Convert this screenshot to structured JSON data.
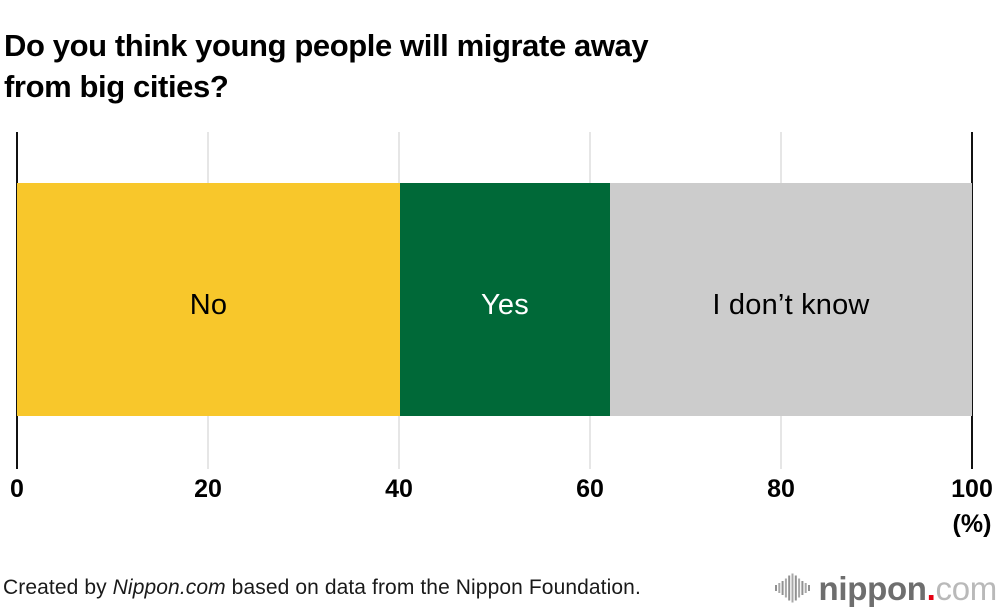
{
  "chart_data": {
    "type": "bar",
    "orientation": "horizontal-stacked",
    "title": "Do you think young people will migrate away\nfrom big cities?",
    "categories": [
      "No",
      "Yes",
      "I don’t know"
    ],
    "values": [
      40.1,
      22.0,
      37.9
    ],
    "segments": [
      {
        "label": "No",
        "value": 40.1,
        "color": "#f8c72b",
        "text_color": "#000000"
      },
      {
        "label": "Yes",
        "value": 22.0,
        "color": "#006938",
        "text_color": "#ffffff"
      },
      {
        "label": "I don’t know",
        "value": 37.9,
        "color": "#cccccc",
        "text_color": "#000000"
      }
    ],
    "x_ticks": [
      0,
      20,
      40,
      60,
      80,
      100
    ],
    "xlim": [
      0,
      100
    ],
    "x_unit": "(%)",
    "grid": true,
    "legend_position": "none",
    "xlabel": "",
    "ylabel": ""
  },
  "footer": {
    "credit_prefix": "Created by ",
    "credit_source": "Nippon.com",
    "credit_suffix": " based on data from the Nippon Foundation.",
    "logo": {
      "brand": "nippon",
      "dot": ".",
      "tld": "com",
      "icon": "waveform-icon",
      "brand_color": "#6e6e6e",
      "dot_color": "#e60012",
      "tld_color": "#b9b9b9"
    }
  }
}
